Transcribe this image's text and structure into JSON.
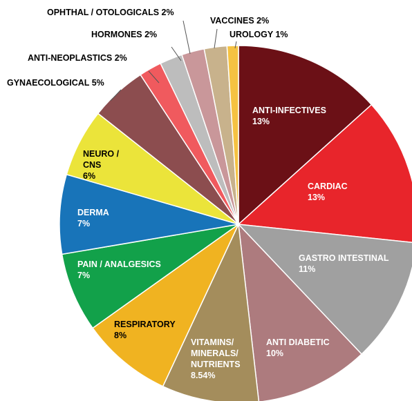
{
  "chart_data": {
    "type": "pie",
    "categories": [
      "ANTI-INFECTIVES",
      "CARDIAC",
      "GASTRO INTESTINAL",
      "ANTI DIABETIC",
      "VITAMINS/ MINERALS/ NUTRIENTS",
      "RESPIRATORY",
      "PAIN / ANALGESICS",
      "DERMA",
      "NEURO / CNS",
      "GYNAECOLOGICAL",
      "ANTI-NEOPLASTICS",
      "HORMONES",
      "OPHTHAL / OTOLOGICALS",
      "VACCINES",
      "UROLOGY"
    ],
    "values": [
      13,
      13,
      11,
      10,
      8.54,
      8,
      7,
      7,
      6,
      5,
      2,
      2,
      2,
      2,
      1
    ],
    "value_labels": [
      "13%",
      "13%",
      "11%",
      "10%",
      "8.54%",
      "8%",
      "7%",
      "7%",
      "6%",
      "5%",
      "2%",
      "2%",
      "2%",
      "2%",
      "1%"
    ],
    "colors": [
      "#6b1016",
      "#e8252b",
      "#a0a0a0",
      "#ad7b7e",
      "#a48d5c",
      "#f0b321",
      "#12a14a",
      "#1874b9",
      "#ebe43a",
      "#8c4d4f",
      "#f05a5e",
      "#bdbdbd",
      "#c9979a",
      "#c8b28c",
      "#f5c242"
    ]
  }
}
